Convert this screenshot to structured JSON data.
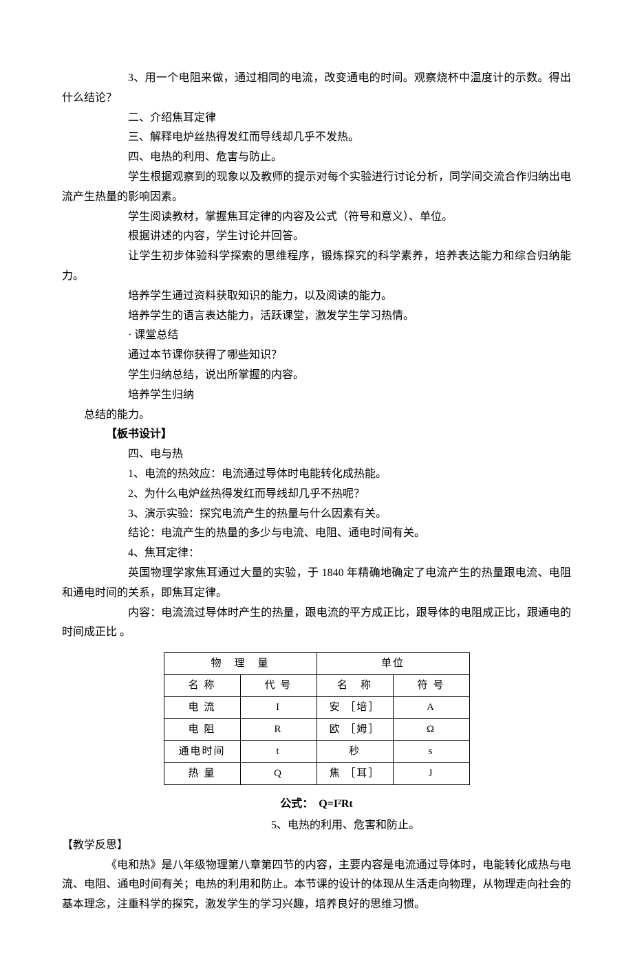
{
  "body": {
    "p1": "3、用一个电阻来做，通过相同的电流，改变通电的时间。观察烧杯中温度计的示数。得出什么结论？",
    "p2": "二、介绍焦耳定律",
    "p3": "三、解释电炉丝热得发红而导线却几乎不发热。",
    "p4": "四、电热的利用、危害与防止。",
    "p5": "学生根据观察到的现象以及教师的提示对每个实验进行讨论分析，同学间交流合作归纳出电流产生热量的影响因素。",
    "p6": "学生阅读教材，掌握焦耳定律的内容及公式（符号和意义）、单位。",
    "p7": "根据讲述的内容，学生讨论并回答。",
    "p8": "让学生初步体验科学探索的思维程序，锻炼探究的科学素养，培养表达能力和综合归纳能力。",
    "p9": "培养学生通过资料获取知识的能力，以及阅读的能力。",
    "p10": "培养学生的语言表达能力，活跃课堂，激发学生学习热情。",
    "p11": "· 课堂总结",
    "p12": "通过本节课你获得了哪些知识？",
    "p13": "学生归纳总结，说出所掌握的内容。",
    "p14": "培养学生归纳",
    "p15": "总结的能力。"
  },
  "board": {
    "header": "【板书设计】",
    "p1": "四、电与热",
    "p2": "1、电流的热效应：电流通过导体时电能转化成热能。",
    "p3": "2、为什么电炉丝热得发红而导线却几乎不热呢？",
    "p4": "3、演示实验：探究电流产生的热量与什么因素有关。",
    "p5": "结论：电流产生的热量的多少与电流、电阻、通电时间有关。",
    "p6": "4、焦耳定律：",
    "p7": "英国物理学家焦耳通过大量的实验，于 1840 年精确地确定了电流产生的热量跟电流、电阻和通电时间的关系，即焦耳定律。",
    "p8": "内容：电流流过导体时产生的热量，跟电流的平方成正比，跟导体的电阻成正比，跟通电的时间成正比 。"
  },
  "table": {
    "col_width_a": 110,
    "col_width_b": 110,
    "col_width_c": 110,
    "col_width_d": 110,
    "header_phys": "物　理　量",
    "header_unit": "单位",
    "sub_name": "名 称",
    "sub_code": "代 号",
    "sub_unit_name": "名　称",
    "sub_symbol": "符 号",
    "rows": [
      {
        "name": "电 流",
        "code": "I",
        "unit_name": "安 ［培］",
        "symbol": "A"
      },
      {
        "name": "电 阻",
        "code": "R",
        "unit_name": "欧 ［姆］",
        "symbol": "Ω"
      },
      {
        "name": "通电时间",
        "code": "t",
        "unit_name": "秒",
        "symbol": "s"
      },
      {
        "name": "热 量",
        "code": "Q",
        "unit_name": "焦 ［耳］",
        "symbol": "J"
      }
    ]
  },
  "formula": {
    "label": "公式：　Q=I²Rt",
    "after": "5、电热的利用、危害和防止。"
  },
  "reflection": {
    "header": "【教学反思】",
    "body": "《电和热》是八年级物理第八章第四节的内容，主要内容是电流通过导体时，电能转化成热与电流、电阻、通电时间有关；电热的利用和防止。本节课的设计的体现从生活走向物理，从物理走向社会的基本理念，注重科学的探究，激发学生的学习兴趣，培养良好的思维习惯。"
  }
}
